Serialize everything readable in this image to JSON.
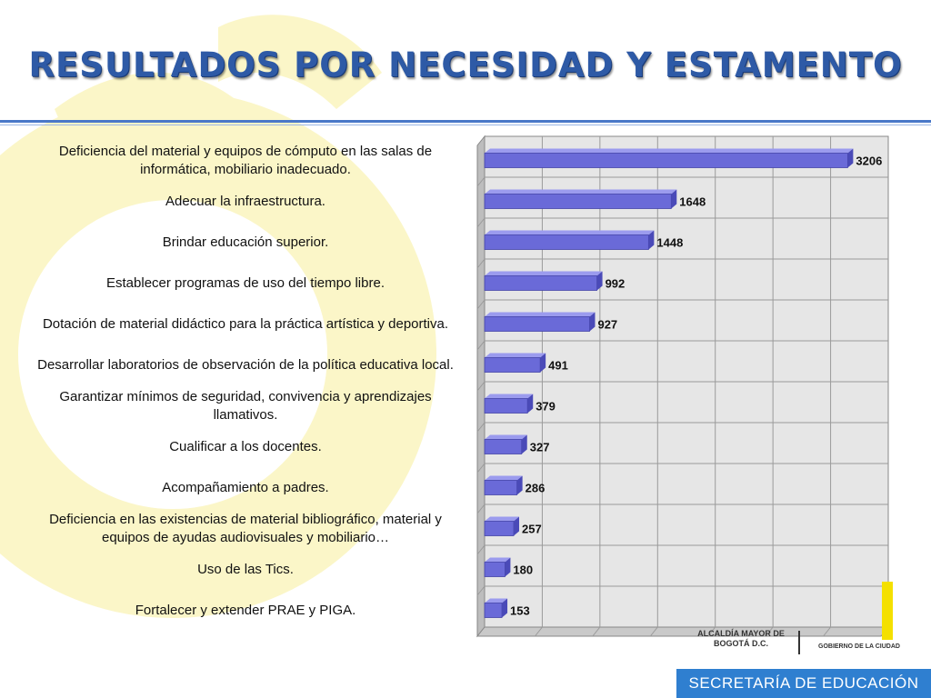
{
  "page": {
    "title": "RESULTADOS POR NECESIDAD Y ESTAMENTO"
  },
  "chart_data": {
    "type": "bar",
    "orientation": "horizontal",
    "categories": [
      "Deficiencia del material y equipos de cómputo en las salas de informática, mobiliario inadecuado.",
      "Adecuar  la infraestructura.",
      "Brindar educación superior.",
      "Establecer programas de uso del tiempo libre.",
      "Dotación de material didáctico para la práctica artística y deportiva.",
      "Desarrollar laboratorios de observación de la política educativa local.",
      "Garantizar mínimos de seguridad, convivencia y aprendizajes llamativos.",
      "Cualificar a los docentes.",
      "Acompañamiento a padres.",
      "Deficiencia en las existencias de material bibliográfico, material y equipos de ayudas audiovisuales y mobiliario…",
      "Uso de las Tics.",
      "Fortalecer y extender PRAE y PIGA."
    ],
    "values": [
      3206,
      1648,
      1448,
      992,
      927,
      491,
      379,
      327,
      286,
      257,
      180,
      153
    ],
    "value_labels": [
      "3206",
      "1648",
      "1448",
      "992",
      "927",
      "491",
      "379",
      "327",
      "286",
      "257",
      "180",
      "153"
    ],
    "xlim": [
      0,
      3500
    ],
    "grid": true,
    "legend": "none",
    "bar_color": "#6a6ad8"
  },
  "logos": {
    "alcaldia": "ALCALDÍA MAYOR DE BOGOTÁ D.C.",
    "gobierno": "GOBIERNO DE LA CIUDAD"
  },
  "footer": {
    "label": "SECRETARÍA DE EDUCACIÓN"
  }
}
